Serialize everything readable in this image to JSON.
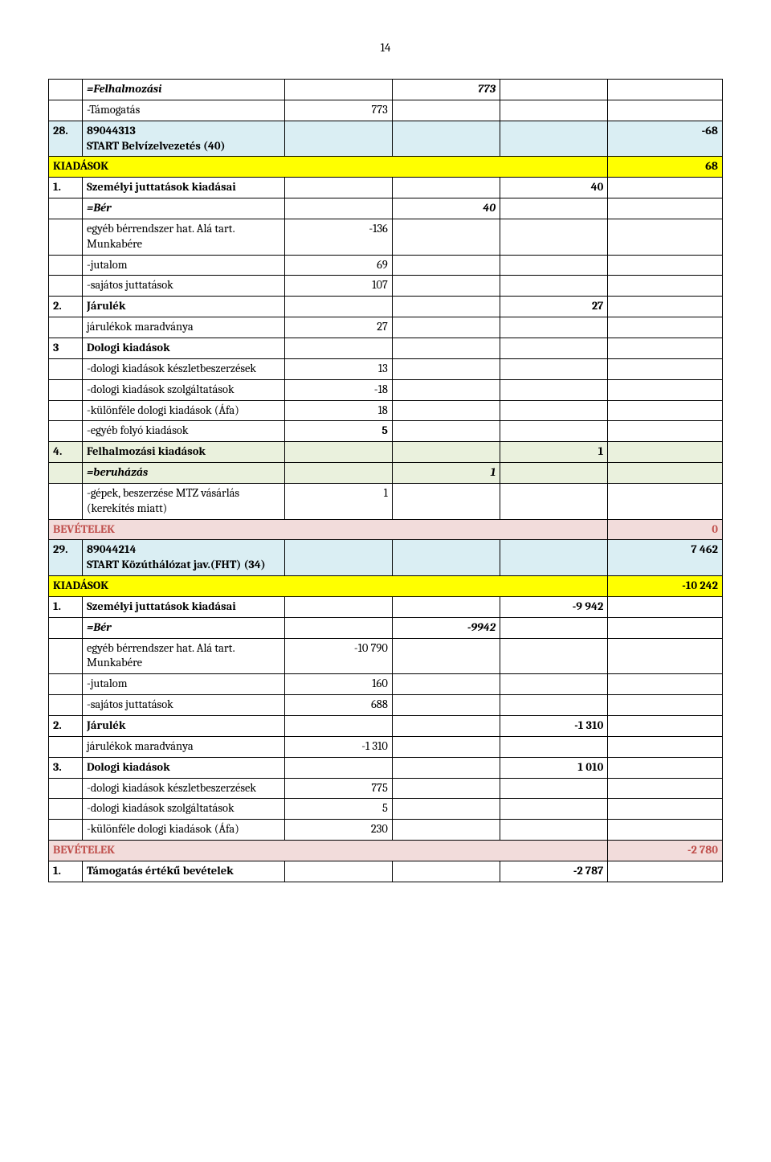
{
  "pageNumber": "14",
  "rows": [
    {
      "c0": "",
      "c1": "=Felhalmozási",
      "c2": "",
      "c3": "773",
      "c4": "",
      "c5": "",
      "style": [
        "",
        "bi",
        "",
        "bi r",
        "",
        ""
      ],
      "bg": ""
    },
    {
      "c0": "",
      "c1": "-Támogatás",
      "c2": "773",
      "c3": "",
      "c4": "",
      "c5": "",
      "style": [
        "",
        "",
        "r",
        "",
        "",
        ""
      ],
      "bg": ""
    },
    {
      "c0": "28.",
      "c1": "89044313\nSTART Belvízelvezetés  (40)",
      "c2": "",
      "c3": "",
      "c4": "",
      "c5": "-68",
      "style": [
        "b",
        "b",
        "",
        "",
        "",
        "b r"
      ],
      "bg": "bg-blue"
    },
    {
      "c0": "KIADÁSOK",
      "c1": "",
      "c2": "",
      "c3": "",
      "c4": "",
      "c5": "68",
      "style": [
        "b",
        "",
        "",
        "",
        "",
        "b r"
      ],
      "bg": "bg-yellow",
      "spanFirst": 5
    },
    {
      "c0": "1.",
      "c1": "Személyi juttatások kiadásai",
      "c2": "",
      "c3": "",
      "c4": "40",
      "c5": "",
      "style": [
        "b",
        "b",
        "",
        "",
        "b r",
        ""
      ],
      "bg": ""
    },
    {
      "c0": "",
      "c1": "=Bér",
      "c2": "",
      "c3": "40",
      "c4": "",
      "c5": "",
      "style": [
        "",
        "bi",
        "",
        "bi r",
        "",
        ""
      ],
      "bg": ""
    },
    {
      "c0": "",
      "c1": "egyéb bérrendszer hat. Alá tart. Munkabére",
      "c2": "-136",
      "c3": "",
      "c4": "",
      "c5": "",
      "style": [
        "",
        "",
        "r",
        "",
        "",
        ""
      ],
      "bg": ""
    },
    {
      "c0": "",
      "c1": "-jutalom",
      "c2": "69",
      "c3": "",
      "c4": "",
      "c5": "",
      "style": [
        "",
        "",
        "r",
        "",
        "",
        ""
      ],
      "bg": ""
    },
    {
      "c0": "",
      "c1": "-sajátos juttatások",
      "c2": "107",
      "c3": "",
      "c4": "",
      "c5": "",
      "style": [
        "",
        "",
        "r",
        "",
        "",
        ""
      ],
      "bg": ""
    },
    {
      "c0": "2.",
      "c1": "Járulék",
      "c2": "",
      "c3": "",
      "c4": "27",
      "c5": "",
      "style": [
        "b",
        "b",
        "",
        "",
        "b r",
        ""
      ],
      "bg": ""
    },
    {
      "c0": "",
      "c1": "járulékok maradványa",
      "c2": "27",
      "c3": "",
      "c4": "",
      "c5": "",
      "style": [
        "",
        "",
        "r",
        "",
        "",
        ""
      ],
      "bg": ""
    },
    {
      "c0": "3",
      "c1": "Dologi kiadások",
      "c2": "",
      "c3": "",
      "c4": "",
      "c5": "",
      "style": [
        "b",
        "b",
        "",
        "",
        "",
        ""
      ],
      "bg": ""
    },
    {
      "c0": "",
      "c1": "-dologi kiadások készletbeszerzések",
      "c2": "13",
      "c3": "",
      "c4": "",
      "c5": "",
      "style": [
        "",
        "",
        "r",
        "",
        "",
        ""
      ],
      "bg": ""
    },
    {
      "c0": "",
      "c1": "-dologi kiadások szolgáltatások",
      "c2": "-18",
      "c3": "",
      "c4": "",
      "c5": "",
      "style": [
        "",
        "",
        "r",
        "",
        "",
        ""
      ],
      "bg": ""
    },
    {
      "c0": "",
      "c1": "-különféle dologi kiadások (Áfa)",
      "c2": "18",
      "c3": "",
      "c4": "",
      "c5": "",
      "style": [
        "",
        "",
        "r",
        "",
        "",
        ""
      ],
      "bg": ""
    },
    {
      "c0": "",
      "c1": "-egyéb folyó kiadások",
      "c2": "5",
      "c3": "",
      "c4": "",
      "c5": "",
      "style": [
        "",
        "",
        "b r",
        "",
        "",
        ""
      ],
      "bg": ""
    },
    {
      "c0": "4.",
      "c1": "Felhalmozási kiadások",
      "c2": "",
      "c3": "",
      "c4": "1",
      "c5": "",
      "style": [
        "b",
        "b",
        "",
        "",
        "b r",
        ""
      ],
      "bg": "bg-green"
    },
    {
      "c0": "",
      "c1": "=beruházás",
      "c2": "",
      "c3": "1",
      "c4": "",
      "c5": "",
      "style": [
        "",
        "bi",
        "",
        "bi r",
        "",
        ""
      ],
      "bg": "bg-green"
    },
    {
      "c0": "",
      "c1": "-gépek, beszerzése MTZ vásárlás (kerekítés miatt)",
      "c2": "1",
      "c3": "",
      "c4": "",
      "c5": "",
      "style": [
        "",
        "",
        "r",
        "",
        "",
        ""
      ],
      "bg": ""
    },
    {
      "c0": "BEVÉTELEK",
      "c1": "",
      "c2": "",
      "c3": "",
      "c4": "",
      "c5": "0",
      "style": [
        "red-text",
        "",
        "",
        "",
        "",
        "b r red-text"
      ],
      "bg": "bg-red",
      "spanFirst": 5
    },
    {
      "c0": "29.",
      "c1": "89044214\nSTART Közúthálózat jav.(FHT)   (34)",
      "c2": "",
      "c3": "",
      "c4": "",
      "c5": "7 462",
      "style": [
        "b",
        "b",
        "",
        "",
        "",
        "b r"
      ],
      "bg": "bg-blue"
    },
    {
      "c0": "KIADÁSOK",
      "c1": "",
      "c2": "",
      "c3": "",
      "c4": "",
      "c5": "-10 242",
      "style": [
        "b",
        "",
        "",
        "",
        "",
        "b r"
      ],
      "bg": "bg-yellow",
      "spanFirst": 5
    },
    {
      "c0": "1.",
      "c1": "Személyi juttatások kiadásai",
      "c2": "",
      "c3": "",
      "c4": "-9 942",
      "c5": "",
      "style": [
        "b",
        "b",
        "",
        "",
        "b r",
        ""
      ],
      "bg": ""
    },
    {
      "c0": "",
      "c1": "=Bér",
      "c2": "",
      "c3": "-9942",
      "c4": "",
      "c5": "",
      "style": [
        "",
        "bi",
        "",
        "bi r",
        "",
        ""
      ],
      "bg": ""
    },
    {
      "c0": "",
      "c1": "egyéb bérrendszer hat. Alá tart. Munkabére",
      "c2": "-10 790",
      "c3": "",
      "c4": "",
      "c5": "",
      "style": [
        "",
        "",
        "r",
        "",
        "",
        ""
      ],
      "bg": ""
    },
    {
      "c0": "",
      "c1": "-jutalom",
      "c2": "160",
      "c3": "",
      "c4": "",
      "c5": "",
      "style": [
        "",
        "",
        "r",
        "",
        "",
        ""
      ],
      "bg": ""
    },
    {
      "c0": "",
      "c1": "-sajátos juttatások",
      "c2": "688",
      "c3": "",
      "c4": "",
      "c5": "",
      "style": [
        "",
        "",
        "r",
        "",
        "",
        ""
      ],
      "bg": ""
    },
    {
      "c0": "2.",
      "c1": "Járulék",
      "c2": "",
      "c3": "",
      "c4": "-1 310",
      "c5": "",
      "style": [
        "b",
        "b",
        "",
        "",
        "b r",
        ""
      ],
      "bg": ""
    },
    {
      "c0": "",
      "c1": "járulékok maradványa",
      "c2": "-1 310",
      "c3": "",
      "c4": "",
      "c5": "",
      "style": [
        "",
        "",
        "r",
        "",
        "",
        ""
      ],
      "bg": ""
    },
    {
      "c0": "3.",
      "c1": "Dologi kiadások",
      "c2": "",
      "c3": "",
      "c4": "1 010",
      "c5": "",
      "style": [
        "b",
        "b",
        "",
        "",
        "b r",
        ""
      ],
      "bg": ""
    },
    {
      "c0": "",
      "c1": "-dologi kiadások készletbeszerzések",
      "c2": "775",
      "c3": "",
      "c4": "",
      "c5": "",
      "style": [
        "",
        "",
        "r",
        "",
        "",
        ""
      ],
      "bg": ""
    },
    {
      "c0": "",
      "c1": "-dologi kiadások szolgáltatások",
      "c2": "5",
      "c3": "",
      "c4": "",
      "c5": "",
      "style": [
        "",
        "",
        "r",
        "",
        "",
        ""
      ],
      "bg": ""
    },
    {
      "c0": "",
      "c1": "-különféle dologi kiadások (Áfa)",
      "c2": "230",
      "c3": "",
      "c4": "",
      "c5": "",
      "style": [
        "",
        "",
        "r",
        "",
        "",
        ""
      ],
      "bg": ""
    },
    {
      "c0": "BEVÉTELEK",
      "c1": "",
      "c2": "",
      "c3": "",
      "c4": "",
      "c5": "-2 780",
      "style": [
        "red-text",
        "",
        "",
        "",
        "",
        "b r red-text"
      ],
      "bg": "bg-red",
      "spanFirst": 5
    },
    {
      "c0": "1.",
      "c1": "Támogatás értékű bevételek",
      "c2": "",
      "c3": "",
      "c4": "-2 787",
      "c5": "",
      "style": [
        "b",
        "b",
        "",
        "",
        "b r",
        ""
      ],
      "bg": ""
    }
  ],
  "colors": {
    "blue": "#daeef3",
    "yellow": "#ffff00",
    "green": "#eaf1dd",
    "red": "#f2dcdb",
    "redText": "#c0504d",
    "border": "#000000"
  }
}
